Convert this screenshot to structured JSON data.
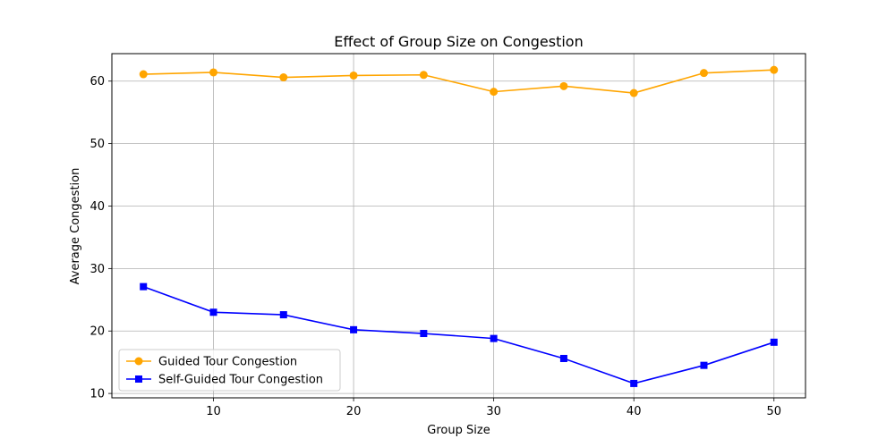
{
  "chart_data": {
    "type": "line",
    "title": "Effect of Group Size on Congestion",
    "xlabel": "Group Size",
    "ylabel": "Average Congestion",
    "x": [
      5,
      10,
      15,
      20,
      25,
      30,
      35,
      40,
      45,
      50
    ],
    "xlim": [
      2.75,
      52.25
    ],
    "ylim": [
      9.3,
      64.4
    ],
    "xticks": [
      10,
      20,
      30,
      40,
      50
    ],
    "yticks": [
      10,
      20,
      30,
      40,
      50,
      60
    ],
    "grid": true,
    "legend_position": "lower-left",
    "series": [
      {
        "name": "Guided Tour Congestion",
        "color": "#ffa500",
        "marker": "circle",
        "values": [
          61.1,
          61.4,
          60.6,
          60.9,
          61.0,
          58.3,
          59.2,
          58.1,
          61.3,
          61.8
        ]
      },
      {
        "name": "Self-Guided Tour Congestion",
        "color": "#0000ff",
        "marker": "square",
        "values": [
          27.1,
          23.0,
          22.6,
          20.2,
          19.6,
          18.8,
          15.6,
          11.6,
          14.5,
          18.2
        ]
      }
    ]
  }
}
